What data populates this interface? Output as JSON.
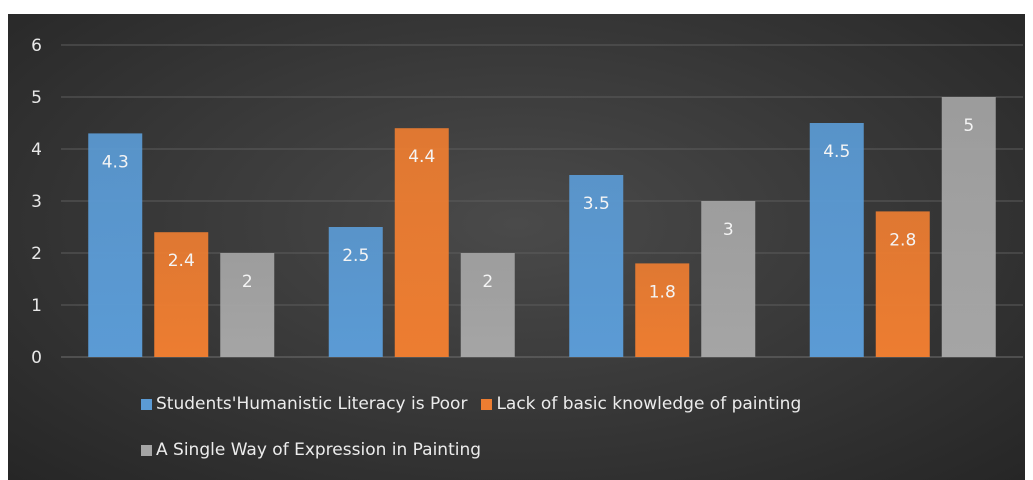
{
  "colors": {
    "series_1": "#5b9bd5",
    "series_2": "#ed7d31",
    "series_3": "#a5a5a5"
  },
  "chart_data": {
    "type": "bar",
    "title": "",
    "xlabel": "",
    "ylabel": "",
    "categories": [
      "",
      "",
      "",
      ""
    ],
    "ylim": [
      0,
      6
    ],
    "yticks": [
      "0",
      "1",
      "2",
      "3",
      "4",
      "5",
      "6"
    ],
    "grid": true,
    "legend_position": "bottom",
    "series": [
      {
        "name": "Students'Humanistic Literacy is Poor",
        "values": [
          4.3,
          2.5,
          3.5,
          4.5
        ],
        "labels": [
          "4.3",
          "2.5",
          "3.5",
          "4.5"
        ]
      },
      {
        "name": "Lack of basic knowledge of painting",
        "values": [
          2.4,
          4.4,
          1.8,
          2.8
        ],
        "labels": [
          "2.4",
          "4.4",
          "1.8",
          "2.8"
        ]
      },
      {
        "name": "A Single Way of Expression in Painting",
        "values": [
          2,
          2,
          3,
          5
        ],
        "labels": [
          "2",
          "2",
          "3",
          "5"
        ]
      }
    ]
  }
}
